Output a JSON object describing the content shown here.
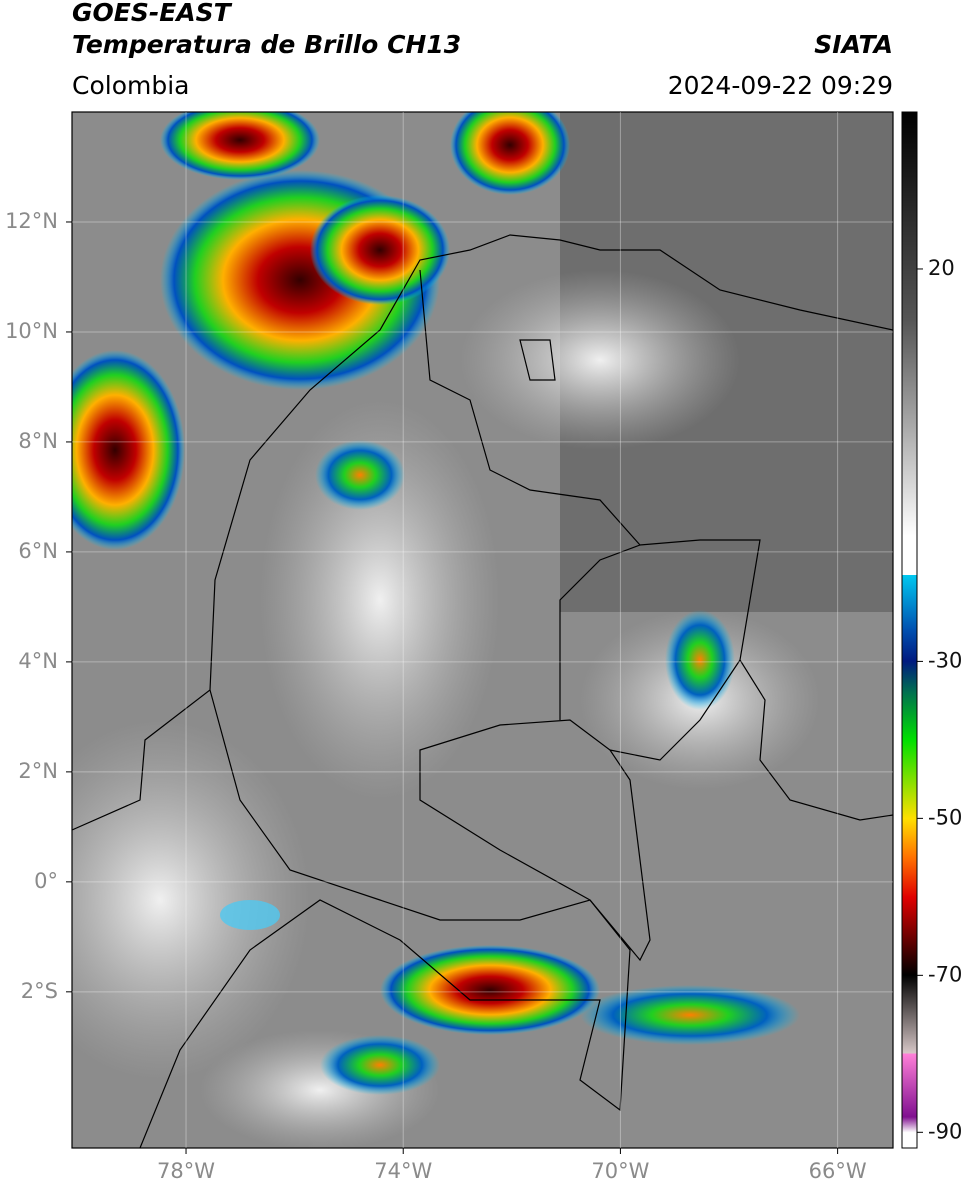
{
  "header": {
    "satellite": "GOES-EAST",
    "product": "Temperatura de Brillo CH13",
    "region": "Colombia",
    "source": "SIATA",
    "datetime": "2024-09-22 09:29"
  },
  "map": {
    "xlim": [
      -80.1,
      -64.98
    ],
    "ylim": [
      -4.84,
      14
    ],
    "xticks": [
      {
        "value": -78,
        "label": "78°W"
      },
      {
        "value": -74,
        "label": "74°W"
      },
      {
        "value": -70,
        "label": "70°W"
      },
      {
        "value": -66,
        "label": "66°W"
      }
    ],
    "yticks": [
      {
        "value": 12,
        "label": "12°N"
      },
      {
        "value": 10,
        "label": "10°N"
      },
      {
        "value": 8,
        "label": "8°N"
      },
      {
        "value": 6,
        "label": "6°N"
      },
      {
        "value": 4,
        "label": "4°N"
      },
      {
        "value": 2,
        "label": "2°N"
      },
      {
        "value": 0,
        "label": "0°"
      },
      {
        "value": -2,
        "label": "2°S"
      }
    ]
  },
  "colorbar": {
    "lim": [
      -92,
      40
    ],
    "ticks": [
      20,
      -30,
      -50,
      -70,
      -90
    ]
  }
}
